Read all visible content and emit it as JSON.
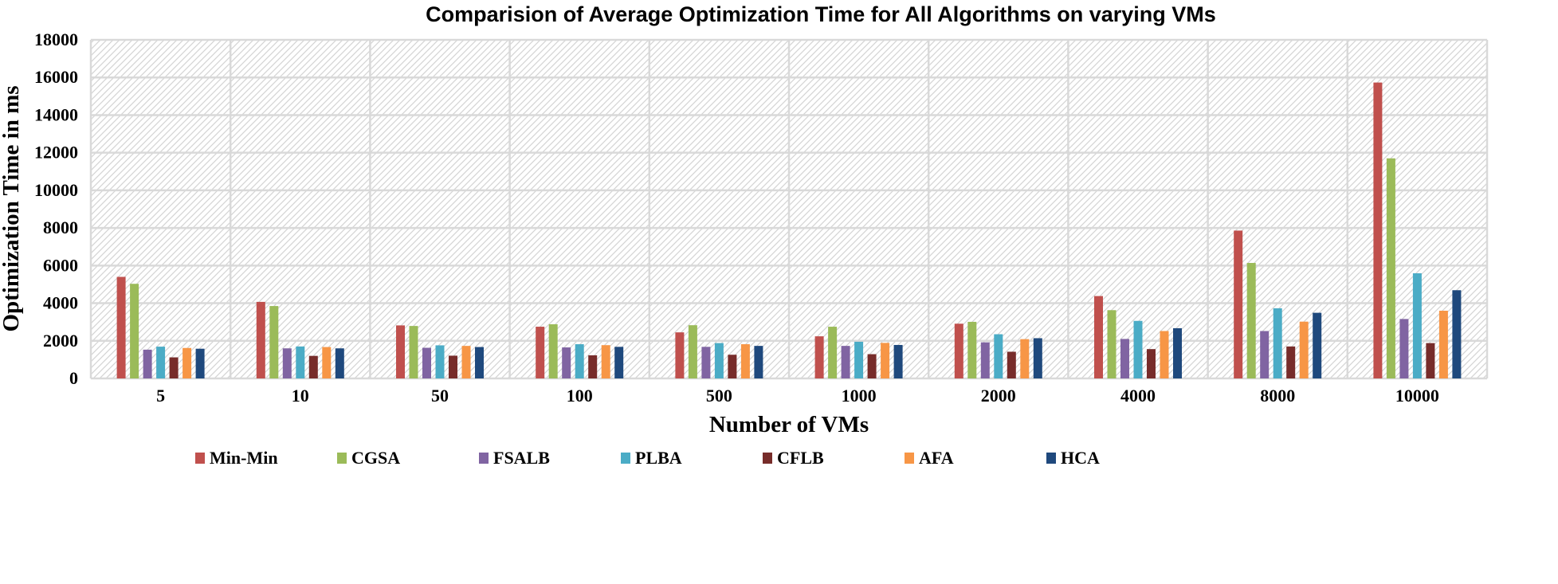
{
  "chart_data": {
    "type": "bar",
    "title": "Comparision of Average Optimization Time for All Algorithms on varying VMs",
    "xlabel": "Number of VMs",
    "ylabel": "Optimization Time in ms",
    "ylim": [
      0,
      18000
    ],
    "yticks": [
      0,
      2000,
      4000,
      6000,
      8000,
      10000,
      12000,
      14000,
      16000,
      18000
    ],
    "grid": true,
    "legend_position": "bottom",
    "categories": [
      "5",
      "10",
      "50",
      "100",
      "500",
      "1000",
      "2000",
      "4000",
      "8000",
      "10000"
    ],
    "series": [
      {
        "name": "Min-Min",
        "color": "#c0504d",
        "values": [
          5400,
          4070,
          2820,
          2750,
          2450,
          2240,
          2910,
          4380,
          7860,
          15730
        ]
      },
      {
        "name": "CGSA",
        "color": "#9bbb59",
        "values": [
          5030,
          3850,
          2790,
          2880,
          2830,
          2750,
          3010,
          3630,
          6140,
          11700
        ]
      },
      {
        "name": "FSALB",
        "color": "#8064a2",
        "values": [
          1530,
          1600,
          1630,
          1650,
          1680,
          1730,
          1920,
          2100,
          2520,
          3160
        ]
      },
      {
        "name": "PLBA",
        "color": "#4bacc6",
        "values": [
          1690,
          1700,
          1760,
          1820,
          1880,
          1950,
          2350,
          3060,
          3730,
          5590
        ]
      },
      {
        "name": "CFLB",
        "color": "#772c2a",
        "values": [
          1120,
          1200,
          1210,
          1230,
          1260,
          1290,
          1420,
          1560,
          1700,
          1880
        ]
      },
      {
        "name": "AFA",
        "color": "#f79646",
        "values": [
          1620,
          1670,
          1730,
          1770,
          1820,
          1890,
          2090,
          2520,
          3020,
          3600
        ]
      },
      {
        "name": "HCA",
        "color": "#1f497d",
        "values": [
          1580,
          1600,
          1670,
          1680,
          1730,
          1780,
          2140,
          2670,
          3490,
          4690
        ]
      }
    ]
  }
}
